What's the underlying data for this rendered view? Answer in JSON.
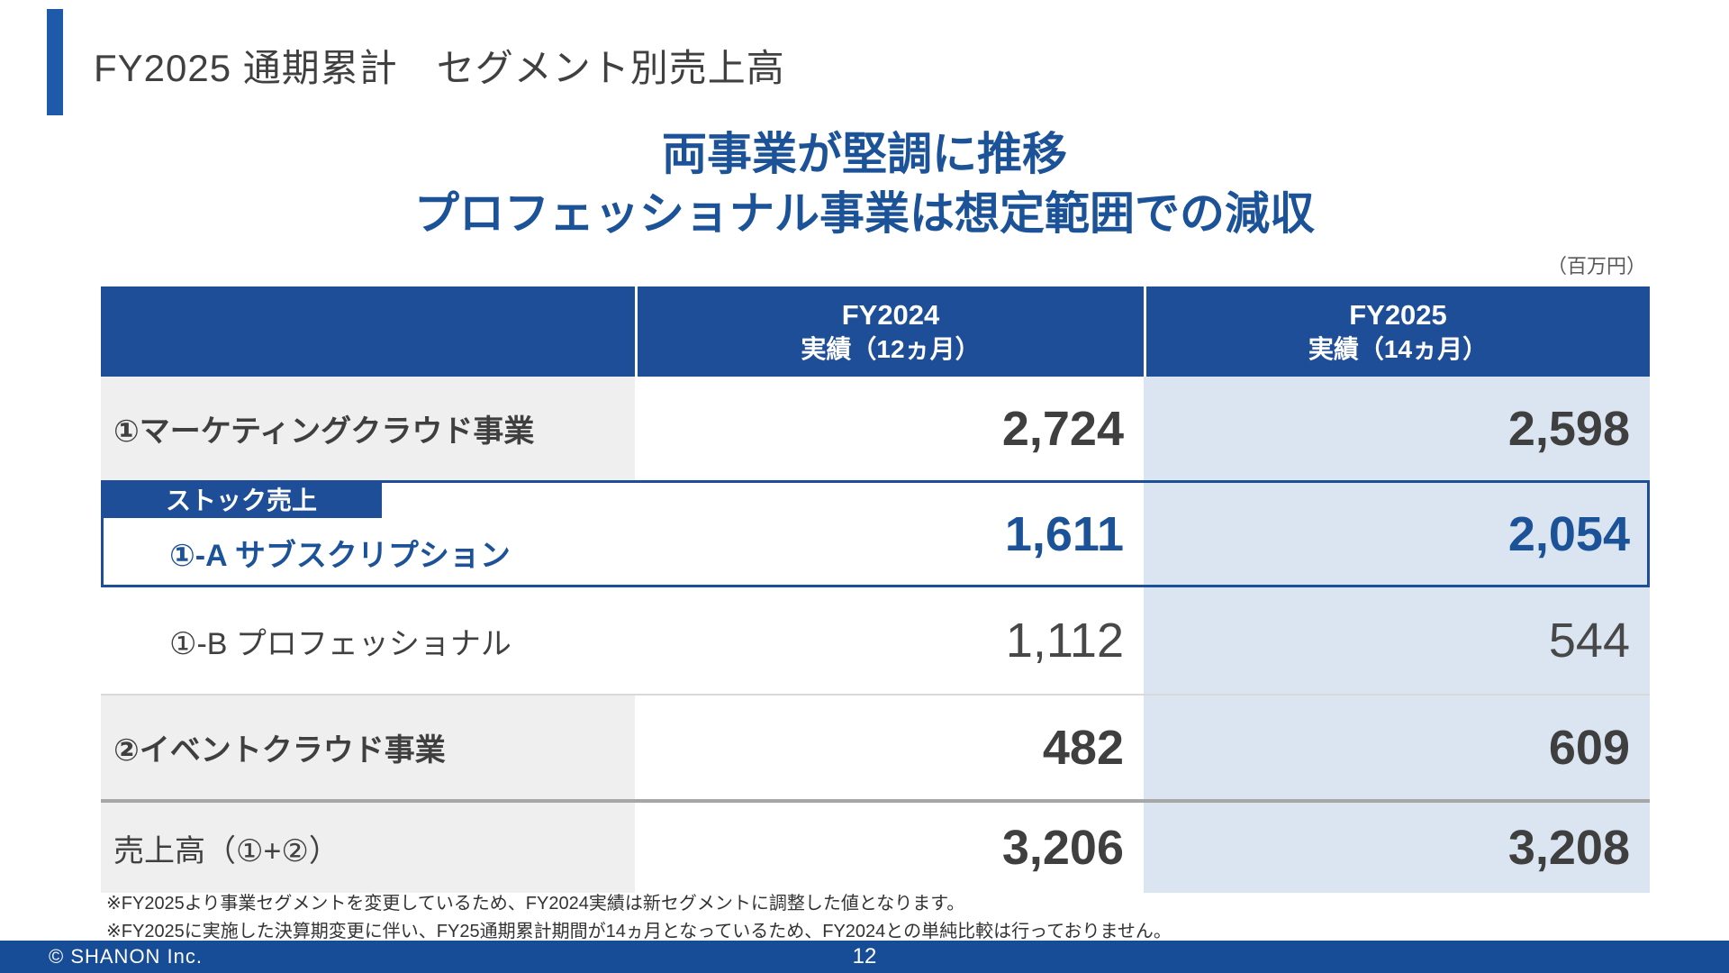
{
  "slide": {
    "title": "FY2025 通期累計　セグメント別売上高",
    "headline": {
      "line1": "両事業が堅調に推移",
      "line2": "プロフェッショナル事業は想定範囲での減収"
    },
    "unit_note": "（百万円）",
    "footnotes": [
      "※FY2025より事業セグメントを変更しているため、FY2024実績は新セグメントに調整した値となります。",
      "※FY2025に実施した決算期変更に伴い、FY25通期累計期間が14ヵ月となっているため、FY2024との単純比較は行っておりません。"
    ],
    "footer": {
      "copyright": "© SHANON Inc.",
      "page_number": "12"
    }
  },
  "table": {
    "header": {
      "fy2024": {
        "line1": "FY2024",
        "line2": "実績（12ヵ月）"
      },
      "fy2025": {
        "line1": "FY2025",
        "line2": "実績（14ヵ月）"
      }
    },
    "rows": [
      {
        "label": "①マーケティングクラウド事業",
        "fy2024": "2,724",
        "fy2025": "2,598"
      },
      {
        "badge": "ストック売上",
        "label": "①-A サブスクリプション",
        "fy2024": "1,611",
        "fy2025": "2,054"
      },
      {
        "label": "①-B プロフェッショナル",
        "fy2024": "1,112",
        "fy2025": "544"
      },
      {
        "label": "②イベントクラウド事業",
        "fy2024": "482",
        "fy2025": "609"
      },
      {
        "label": "売上高（①+②）",
        "fy2024": "3,206",
        "fy2025": "3,208"
      }
    ]
  },
  "colors": {
    "accent_blue": "#1f4e99",
    "headline_blue": "#1b5298",
    "fy2025_column_bg": "#dbe5f1",
    "label_column_bg": "#efefef",
    "text_dark": "#3f3f3f"
  }
}
